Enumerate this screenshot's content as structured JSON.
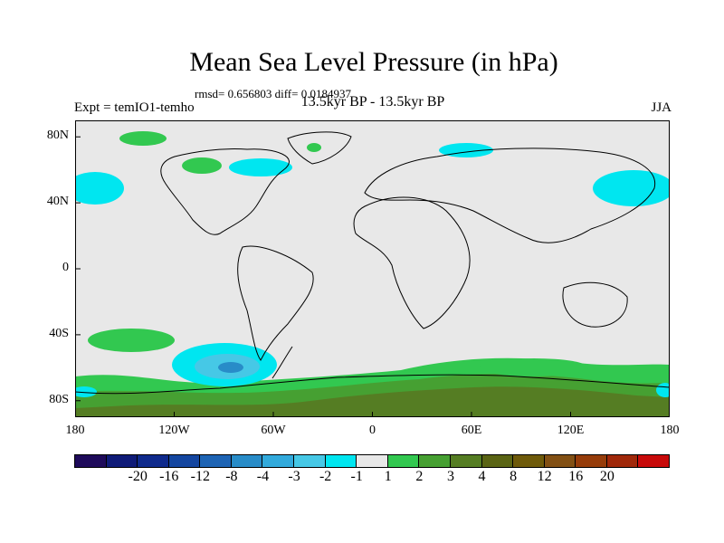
{
  "title": "Mean Sea Level Pressure (in hPa)",
  "stats_line": "rmsd= 0.656803 diff= 0.0184937",
  "center_title": "13.5kyr BP - 13.5kyr BP",
  "left_title": "Expt = temIO1-temho",
  "right_title": "JJA",
  "colors": {
    "background_field": "#e8e8e8",
    "coast": "#000000"
  },
  "lat_ticks": [
    {
      "label": "80N",
      "lat": 80
    },
    {
      "label": "40N",
      "lat": 40
    },
    {
      "label": "0",
      "lat": 0
    },
    {
      "label": "40S",
      "lat": -40
    },
    {
      "label": "80S",
      "lat": -80
    }
  ],
  "lon_ticks": [
    {
      "label": "180",
      "lon": -180
    },
    {
      "label": "120W",
      "lon": -120
    },
    {
      "label": "60W",
      "lon": -60
    },
    {
      "label": "0",
      "lon": 0
    },
    {
      "label": "60E",
      "lon": 60
    },
    {
      "label": "120E",
      "lon": 120
    },
    {
      "label": "180",
      "lon": 180
    }
  ],
  "colorbar": {
    "colors": [
      "#1e0a5a",
      "#0f1b78",
      "#0f2a8c",
      "#1446a0",
      "#1e64b4",
      "#288cc8",
      "#32aadc",
      "#46c8e6",
      "#00e6f0",
      "#e8e8e8",
      "#32c850",
      "#46a032",
      "#557d23",
      "#5a6414",
      "#6e5a0a",
      "#825014",
      "#963c0a",
      "#a0280a",
      "#c80a0a"
    ],
    "labels": [
      "-20",
      "-16",
      "-12",
      "-8",
      "-4",
      "-3",
      "-2",
      "-1",
      "1",
      "2",
      "3",
      "4",
      "8",
      "12",
      "16",
      "20"
    ]
  }
}
